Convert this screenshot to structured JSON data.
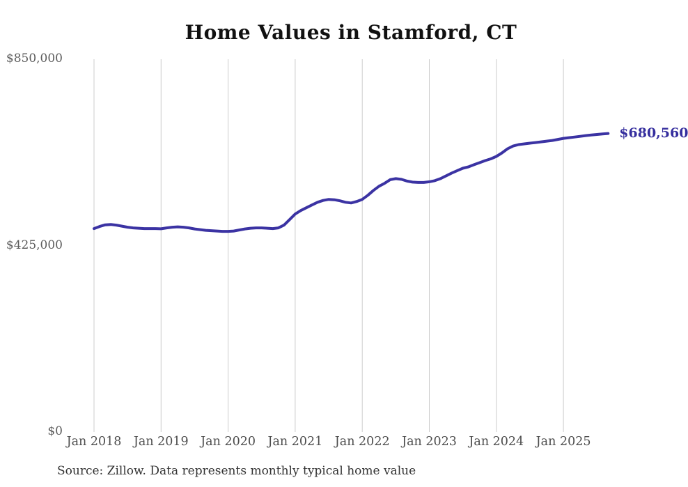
{
  "title": "Home Values in Stamford, CT",
  "source_note": "Source: Zillow. Data represents monthly typical home value",
  "end_label": "$680,560",
  "colors": {
    "line": "#3b33a3",
    "end_label": "#352e9e",
    "grid": "#cccccc",
    "title": "#111111",
    "axis_text": "#555555",
    "background": "#ffffff"
  },
  "chart_data": {
    "type": "line",
    "title": "Home Values in Stamford, CT",
    "series_name": "Monthly typical home value",
    "grid": "vertical-only",
    "ylim": [
      0,
      850000
    ],
    "y_ticks": [
      {
        "label": "$850,000",
        "value": 850000
      },
      {
        "label": "$425,000",
        "value": 425000
      },
      {
        "label": "$0",
        "value": 0
      }
    ],
    "x_ticks": [
      {
        "label": "Jan 2018",
        "month_index": 0
      },
      {
        "label": "Jan 2019",
        "month_index": 12
      },
      {
        "label": "Jan 2020",
        "month_index": 24
      },
      {
        "label": "Jan 2021",
        "month_index": 36
      },
      {
        "label": "Jan 2022",
        "month_index": 48
      },
      {
        "label": "Jan 2023",
        "month_index": 60
      },
      {
        "label": "Jan 2024",
        "month_index": 72
      },
      {
        "label": "Jan 2025",
        "month_index": 84
      }
    ],
    "months": [
      "Jan 2018",
      "Feb 2018",
      "Mar 2018",
      "Apr 2018",
      "May 2018",
      "Jun 2018",
      "Jul 2018",
      "Aug 2018",
      "Sep 2018",
      "Oct 2018",
      "Nov 2018",
      "Dec 2018",
      "Jan 2019",
      "Feb 2019",
      "Mar 2019",
      "Apr 2019",
      "May 2019",
      "Jun 2019",
      "Jul 2019",
      "Aug 2019",
      "Sep 2019",
      "Oct 2019",
      "Nov 2019",
      "Dec 2019",
      "Jan 2020",
      "Feb 2020",
      "Mar 2020",
      "Apr 2020",
      "May 2020",
      "Jun 2020",
      "Jul 2020",
      "Aug 2020",
      "Sep 2020",
      "Oct 2020",
      "Nov 2020",
      "Dec 2020",
      "Jan 2021",
      "Feb 2021",
      "Mar 2021",
      "Apr 2021",
      "May 2021",
      "Jun 2021",
      "Jul 2021",
      "Aug 2021",
      "Sep 2021",
      "Oct 2021",
      "Nov 2021",
      "Dec 2021",
      "Jan 2022",
      "Feb 2022",
      "Mar 2022",
      "Apr 2022",
      "May 2022",
      "Jun 2022",
      "Jul 2022",
      "Aug 2022",
      "Sep 2022",
      "Oct 2022",
      "Nov 2022",
      "Dec 2022",
      "Jan 2023",
      "Feb 2023",
      "Mar 2023",
      "Apr 2023",
      "May 2023",
      "Jun 2023",
      "Jul 2023",
      "Aug 2023",
      "Sep 2023",
      "Oct 2023",
      "Nov 2023",
      "Dec 2023",
      "Jan 2024",
      "Feb 2024",
      "Mar 2024",
      "Apr 2024",
      "May 2024",
      "Jun 2024",
      "Jul 2024",
      "Aug 2024",
      "Sep 2024",
      "Oct 2024",
      "Nov 2024",
      "Dec 2024",
      "Jan 2025",
      "Feb 2025",
      "Mar 2025",
      "Apr 2025",
      "May 2025",
      "Jun 2025",
      "Jul 2025",
      "Aug 2025",
      "Sep 2025"
    ],
    "values": [
      463800,
      468500,
      472400,
      473200,
      471700,
      469300,
      466900,
      465300,
      464500,
      463800,
      463800,
      463800,
      463300,
      465300,
      466900,
      467700,
      466900,
      465300,
      462900,
      461400,
      459800,
      459000,
      458200,
      457400,
      457400,
      458200,
      460600,
      462900,
      464500,
      465300,
      465300,
      464500,
      463800,
      465300,
      471700,
      484300,
      497000,
      504900,
      511200,
      517600,
      523900,
      527900,
      530300,
      529500,
      527100,
      523900,
      522300,
      525500,
      530300,
      539700,
      550800,
      560300,
      567000,
      575300,
      577700,
      576100,
      572200,
      569800,
      569000,
      569000,
      570600,
      573000,
      577700,
      584100,
      590400,
      595900,
      601400,
      604600,
      609400,
      614100,
      618900,
      622800,
      628400,
      636300,
      645800,
      652100,
      655300,
      656900,
      658500,
      660000,
      661600,
      663200,
      664800,
      667200,
      669500,
      671100,
      672600,
      674200,
      675800,
      677200,
      678400,
      679500,
      680560
    ],
    "final_value": 680560,
    "annotation": {
      "text": "$680,560",
      "position": "line-end"
    },
    "legend": "none"
  },
  "layout_note": ""
}
